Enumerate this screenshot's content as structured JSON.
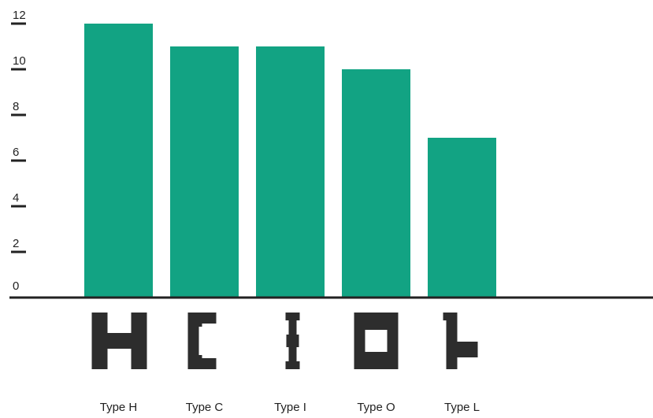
{
  "chart_data": {
    "type": "bar",
    "categories": [
      "Type H",
      "Type C",
      "Type I",
      "Type O",
      "Type L"
    ],
    "values": [
      12,
      11,
      11,
      10,
      7
    ],
    "ylim": [
      0,
      12
    ],
    "yticks": [
      0,
      2,
      4,
      6,
      8,
      10,
      12
    ],
    "title": "",
    "xlabel": "",
    "ylabel": "",
    "grid": false,
    "legend": "none",
    "category_shapes": [
      "H-shape",
      "C-shape",
      "I-shape",
      "O-shape",
      "L-shape"
    ]
  },
  "colors": {
    "bar": "#12a383",
    "axis": "#222222",
    "shape": "#2d2d2d"
  }
}
